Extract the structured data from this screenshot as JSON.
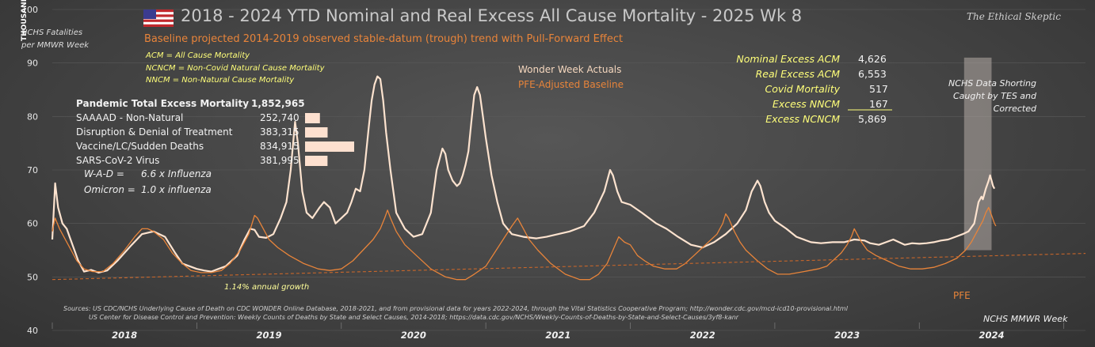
{
  "title": "2018 - 2024 YTD Nominal and Real Excess All Cause Mortality - 2025 Wk 8",
  "subtitle": "Baseline projected 2014-2019 observed stable-datum (trough) trend with Pull-Forward Effect",
  "brand": "The Ethical Skeptic",
  "y_unit": "THOUSANDS",
  "y_desc": [
    "NCHS Fatalities",
    "per MMWR Week"
  ],
  "definitions": [
    "ACM = All Cause Mortality",
    "NCNCM = Non-Covid Natural Cause Mortality",
    "NNCM = Non-Natural Cause Mortality"
  ],
  "totals": {
    "header_label": "Pandemic Total Excess Mortality",
    "header_value": "1,852,965",
    "rows": [
      {
        "label": "SAAAAD - Non-Natural",
        "value": "252,740",
        "amount": 252740
      },
      {
        "label": "Disruption & Denial of Treatment",
        "value": "383,315",
        "amount": 383315
      },
      {
        "label": "Vaccine/LC/Sudden Deaths",
        "value": "834,915",
        "amount": 834915
      },
      {
        "label": "SARS-CoV-2 Virus",
        "value": "381,995",
        "amount": 381995
      }
    ],
    "bar_color": "#fde0cf"
  },
  "ratios": [
    {
      "label": "W-A-D =",
      "value": "6.6 x Influenza"
    },
    {
      "label": "Omicron =",
      "value": "1.0 x influenza"
    }
  ],
  "excess": [
    {
      "label": "Nominal Excess ACM",
      "value": "4,626"
    },
    {
      "label": "Real Excess ACM",
      "value": "6,553"
    },
    {
      "label": "Covid Mortality",
      "value": "517"
    },
    {
      "label": "Excess NNCM",
      "value": "167"
    },
    {
      "label": "Excess NCNCM",
      "value": "5,869"
    }
  ],
  "notes": {
    "growth": "1.14% annual growth",
    "pfe": "PFE",
    "shorting": [
      "NCHS Data Shorting",
      "Caught by TES and",
      "Corrected"
    ]
  },
  "sources": [
    "Sources:   US CDC/NCHS Underlying  Cause of Death on CDC WONDER Online Database, 2018-2021, and from provisional data for years 2022-2024, through the Vital Statistics Cooperative Program; http://wonder.cdc.gov/mcd-icd10-provisional.html",
    "US Center for Disease Control and Prevention: Weekly  Counts of Deaths by State and Select Causes, 2014-2018; https://data.cdc.gov/NCHS/Weekly-Counts-of-Deaths-by-State-and-Select-Causes/3yf8-kanr"
  ],
  "chart_data": {
    "type": "line",
    "title": "2018 - 2024 YTD Nominal and Real Excess All Cause Mortality - 2025 Wk 8",
    "xlabel": "NCHS MMWR Week",
    "ylabel": "THOUSANDS",
    "ylim": [
      40,
      100
    ],
    "yticks": [
      40,
      50,
      60,
      70,
      80,
      90,
      100
    ],
    "x_unit": "year (fractional)",
    "xlim": [
      2018.0,
      2025.15
    ],
    "year_labels": [
      "2018",
      "2019",
      "2020",
      "2021",
      "2022",
      "2023",
      "2024"
    ],
    "legend": [
      "Wonder Week Actuals",
      "PFE-Adjusted Baseline"
    ],
    "colors": {
      "actuals": "#fde3cf",
      "baseline": "#e8843a",
      "trend": "#c8662a",
      "band": "#b5aca6"
    },
    "shaded_period": [
      2024.31,
      2024.5
    ],
    "series": [
      {
        "name": "Wonder Week Actuals",
        "points": [
          [
            2018.0,
            57
          ],
          [
            2018.02,
            67.5
          ],
          [
            2018.04,
            63
          ],
          [
            2018.07,
            60
          ],
          [
            2018.1,
            59
          ],
          [
            2018.14,
            56
          ],
          [
            2018.18,
            53
          ],
          [
            2018.22,
            51
          ],
          [
            2018.27,
            51.3
          ],
          [
            2018.32,
            50.8
          ],
          [
            2018.38,
            51.2
          ],
          [
            2018.45,
            53
          ],
          [
            2018.55,
            56
          ],
          [
            2018.62,
            58
          ],
          [
            2018.7,
            58.5
          ],
          [
            2018.78,
            57.5
          ],
          [
            2018.85,
            54.5
          ],
          [
            2018.9,
            52.5
          ],
          [
            2018.95,
            52
          ],
          [
            2019.0,
            51.5
          ],
          [
            2019.05,
            51.2
          ],
          [
            2019.1,
            51
          ],
          [
            2019.15,
            51.5
          ],
          [
            2019.2,
            52
          ],
          [
            2019.28,
            54
          ],
          [
            2019.33,
            57
          ],
          [
            2019.37,
            59
          ],
          [
            2019.4,
            58.8
          ],
          [
            2019.43,
            57.5
          ],
          [
            2019.48,
            57.3
          ],
          [
            2019.53,
            58
          ],
          [
            2019.58,
            61
          ],
          [
            2019.62,
            64
          ],
          [
            2019.65,
            70
          ],
          [
            2019.68,
            79
          ],
          [
            2019.7,
            75
          ],
          [
            2019.73,
            66
          ],
          [
            2019.76,
            62
          ],
          [
            2019.8,
            61
          ],
          [
            2019.85,
            63
          ],
          [
            2019.88,
            64
          ],
          [
            2019.92,
            63
          ],
          [
            2019.96,
            60
          ],
          [
            2020.0,
            61
          ],
          [
            2020.04,
            62
          ],
          [
            2020.07,
            64
          ],
          [
            2020.1,
            66.5
          ],
          [
            2020.13,
            66
          ],
          [
            2020.16,
            70
          ],
          [
            2020.19,
            78
          ],
          [
            2020.21,
            83
          ],
          [
            2020.23,
            86
          ],
          [
            2020.25,
            87.5
          ],
          [
            2020.27,
            87
          ],
          [
            2020.29,
            83
          ],
          [
            2020.31,
            77
          ],
          [
            2020.34,
            70
          ],
          [
            2020.38,
            62
          ],
          [
            2020.44,
            59
          ],
          [
            2020.5,
            57.5
          ],
          [
            2020.56,
            58
          ],
          [
            2020.62,
            62
          ],
          [
            2020.66,
            70
          ],
          [
            2020.7,
            74
          ],
          [
            2020.72,
            73
          ],
          [
            2020.74,
            70
          ],
          [
            2020.77,
            68
          ],
          [
            2020.8,
            67
          ],
          [
            2020.82,
            67.5
          ],
          [
            2020.84,
            69
          ],
          [
            2020.86,
            71
          ],
          [
            2020.88,
            73.5
          ],
          [
            2020.9,
            79
          ],
          [
            2020.92,
            84
          ],
          [
            2020.94,
            85.5
          ],
          [
            2020.96,
            84
          ],
          [
            2020.98,
            80
          ],
          [
            2021.0,
            76
          ],
          [
            2021.04,
            69
          ],
          [
            2021.08,
            64
          ],
          [
            2021.12,
            60
          ],
          [
            2021.18,
            58
          ],
          [
            2021.26,
            57.5
          ],
          [
            2021.35,
            57.2
          ],
          [
            2021.42,
            57.5
          ],
          [
            2021.5,
            58
          ],
          [
            2021.58,
            58.5
          ],
          [
            2021.68,
            59.5
          ],
          [
            2021.75,
            62
          ],
          [
            2021.82,
            66
          ],
          [
            2021.86,
            70
          ],
          [
            2021.88,
            69
          ],
          [
            2021.91,
            66
          ],
          [
            2021.94,
            64
          ],
          [
            2022.0,
            63.5
          ],
          [
            2022.08,
            62
          ],
          [
            2022.18,
            60
          ],
          [
            2022.25,
            59
          ],
          [
            2022.33,
            57.5
          ],
          [
            2022.42,
            56
          ],
          [
            2022.5,
            55.5
          ],
          [
            2022.58,
            56.5
          ],
          [
            2022.66,
            58
          ],
          [
            2022.74,
            60
          ],
          [
            2022.8,
            62.5
          ],
          [
            2022.84,
            66
          ],
          [
            2022.88,
            68
          ],
          [
            2022.9,
            67
          ],
          [
            2022.93,
            64
          ],
          [
            2022.96,
            62
          ],
          [
            2023.0,
            60.5
          ],
          [
            2023.08,
            59
          ],
          [
            2023.15,
            57.5
          ],
          [
            2023.25,
            56.5
          ],
          [
            2023.32,
            56.3
          ],
          [
            2023.4,
            56.5
          ],
          [
            2023.48,
            56.5
          ],
          [
            2023.55,
            57
          ],
          [
            2023.62,
            56.8
          ],
          [
            2023.66,
            56.3
          ],
          [
            2023.72,
            56
          ],
          [
            2023.77,
            56.5
          ],
          [
            2023.82,
            57
          ],
          [
            2023.86,
            56.5
          ],
          [
            2023.9,
            56
          ],
          [
            2023.95,
            56.3
          ],
          [
            2024.0,
            56.2
          ],
          [
            2024.05,
            56.3
          ],
          [
            2024.1,
            56.5
          ],
          [
            2024.15,
            56.8
          ],
          [
            2024.2,
            57
          ],
          [
            2024.25,
            57.5
          ],
          [
            2024.3,
            58
          ],
          [
            2024.34,
            58.5
          ],
          [
            2024.38,
            60
          ],
          [
            2024.41,
            64
          ],
          [
            2024.43,
            65
          ],
          [
            2024.44,
            64.5
          ],
          [
            2024.46,
            66.5
          ],
          [
            2024.48,
            68
          ],
          [
            2024.49,
            69
          ],
          [
            2024.5,
            68
          ],
          [
            2024.51,
            67
          ],
          [
            2024.52,
            66.5
          ]
        ]
      },
      {
        "name": "PFE-Adjusted Baseline",
        "points": [
          [
            2018.0,
            58.5
          ],
          [
            2018.02,
            61
          ],
          [
            2018.05,
            59
          ],
          [
            2018.08,
            57.5
          ],
          [
            2018.12,
            55.5
          ],
          [
            2018.17,
            53
          ],
          [
            2018.22,
            51.5
          ],
          [
            2018.28,
            51
          ],
          [
            2018.35,
            51
          ],
          [
            2018.42,
            52.5
          ],
          [
            2018.5,
            55
          ],
          [
            2018.57,
            57.5
          ],
          [
            2018.62,
            59
          ],
          [
            2018.66,
            59
          ],
          [
            2018.7,
            58.5
          ],
          [
            2018.77,
            57
          ],
          [
            2018.83,
            54.5
          ],
          [
            2018.9,
            52.5
          ],
          [
            2018.96,
            51.2
          ],
          [
            2019.03,
            50.8
          ],
          [
            2019.1,
            50.8
          ],
          [
            2019.17,
            51.2
          ],
          [
            2019.23,
            52.5
          ],
          [
            2019.3,
            55
          ],
          [
            2019.36,
            58
          ],
          [
            2019.4,
            61.5
          ],
          [
            2019.42,
            61
          ],
          [
            2019.46,
            59
          ],
          [
            2019.5,
            57
          ],
          [
            2019.56,
            55.5
          ],
          [
            2019.64,
            54
          ],
          [
            2019.74,
            52.5
          ],
          [
            2019.84,
            51.5
          ],
          [
            2019.92,
            51.2
          ],
          [
            2020.0,
            51.5
          ],
          [
            2020.08,
            53
          ],
          [
            2020.15,
            55
          ],
          [
            2020.22,
            57
          ],
          [
            2020.27,
            59
          ],
          [
            2020.3,
            61
          ],
          [
            2020.32,
            62.5
          ],
          [
            2020.34,
            61
          ],
          [
            2020.38,
            58.5
          ],
          [
            2020.44,
            56
          ],
          [
            2020.52,
            54
          ],
          [
            2020.62,
            51.5
          ],
          [
            2020.72,
            50
          ],
          [
            2020.8,
            49.5
          ],
          [
            2020.86,
            49.5
          ],
          [
            2020.92,
            50.5
          ],
          [
            2021.0,
            52
          ],
          [
            2021.06,
            54.5
          ],
          [
            2021.12,
            57
          ],
          [
            2021.18,
            59.5
          ],
          [
            2021.22,
            61
          ],
          [
            2021.26,
            59
          ],
          [
            2021.3,
            57
          ],
          [
            2021.36,
            55
          ],
          [
            2021.45,
            52.5
          ],
          [
            2021.55,
            50.5
          ],
          [
            2021.65,
            49.5
          ],
          [
            2021.72,
            49.5
          ],
          [
            2021.78,
            50.5
          ],
          [
            2021.84,
            52.5
          ],
          [
            2021.88,
            55
          ],
          [
            2021.92,
            57.5
          ],
          [
            2021.96,
            56.5
          ],
          [
            2022.0,
            56
          ],
          [
            2022.05,
            54
          ],
          [
            2022.1,
            53
          ],
          [
            2022.16,
            52
          ],
          [
            2022.24,
            51.5
          ],
          [
            2022.32,
            51.5
          ],
          [
            2022.38,
            52.5
          ],
          [
            2022.44,
            54
          ],
          [
            2022.5,
            55.5
          ],
          [
            2022.56,
            57
          ],
          [
            2022.6,
            58
          ],
          [
            2022.64,
            60
          ],
          [
            2022.66,
            61.8
          ],
          [
            2022.68,
            61
          ],
          [
            2022.72,
            58.5
          ],
          [
            2022.76,
            56.5
          ],
          [
            2022.8,
            55
          ],
          [
            2022.88,
            53
          ],
          [
            2022.95,
            51.5
          ],
          [
            2023.02,
            50.5
          ],
          [
            2023.1,
            50.5
          ],
          [
            2023.2,
            51
          ],
          [
            2023.3,
            51.5
          ],
          [
            2023.36,
            52
          ],
          [
            2023.42,
            53.5
          ],
          [
            2023.46,
            54.5
          ],
          [
            2023.5,
            56
          ],
          [
            2023.53,
            57.5
          ],
          [
            2023.55,
            59
          ],
          [
            2023.57,
            58
          ],
          [
            2023.6,
            56.5
          ],
          [
            2023.64,
            55
          ],
          [
            2023.7,
            54
          ],
          [
            2023.78,
            53
          ],
          [
            2023.86,
            52
          ],
          [
            2023.94,
            51.5
          ],
          [
            2024.02,
            51.5
          ],
          [
            2024.1,
            51.8
          ],
          [
            2024.18,
            52.5
          ],
          [
            2024.26,
            53.5
          ],
          [
            2024.32,
            55
          ],
          [
            2024.36,
            56.5
          ],
          [
            2024.4,
            58.5
          ],
          [
            2024.44,
            60.5
          ],
          [
            2024.46,
            62
          ],
          [
            2024.48,
            63
          ],
          [
            2024.5,
            61.5
          ],
          [
            2024.52,
            60
          ],
          [
            2024.53,
            59.5
          ]
        ]
      },
      {
        "name": "Baseline trend",
        "points": [
          [
            2018.0,
            49.5
          ],
          [
            2025.15,
            54.4
          ]
        ]
      }
    ]
  }
}
